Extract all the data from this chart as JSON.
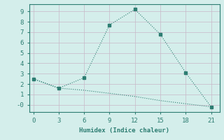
{
  "xlabel": "Humidex (Indice chaleur)",
  "line1_x": [
    0,
    3,
    6,
    9,
    12,
    15,
    18,
    21
  ],
  "line1_y": [
    2.5,
    1.6,
    2.6,
    7.7,
    9.2,
    6.8,
    3.1,
    -0.2
  ],
  "line2_x": [
    0,
    3,
    6,
    9,
    12,
    15,
    18,
    21
  ],
  "line2_y": [
    2.5,
    1.6,
    1.4,
    1.1,
    0.8,
    0.4,
    0.1,
    -0.2
  ],
  "line_color": "#2d7d72",
  "bg_color": "#d4eeeb",
  "grid_color": "#c0ddd9",
  "xlim": [
    -0.5,
    22
  ],
  "ylim": [
    -0.7,
    9.7
  ],
  "xticks": [
    0,
    3,
    6,
    9,
    12,
    15,
    18,
    21
  ],
  "yticks": [
    0,
    1,
    2,
    3,
    4,
    5,
    6,
    7,
    8,
    9
  ],
  "ytick_labels": [
    "-0",
    "1",
    "2",
    "3",
    "4",
    "5",
    "6",
    "7",
    "8",
    "9"
  ],
  "font_size": 6.5
}
